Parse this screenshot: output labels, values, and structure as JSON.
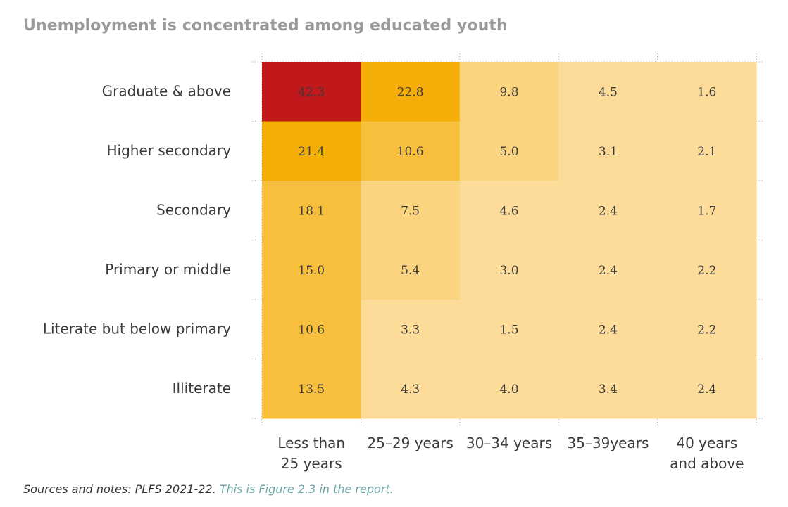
{
  "title": "Unemployment is concentrated among educated youth",
  "footer": {
    "sources": "Sources and notes: PLFS 2021-22.",
    "figure_ref": "This is Figure 2.3 in the report."
  },
  "colors": {
    "highest": "#c1191b",
    "high": "#f5ae07",
    "mid_high": "#f8bf3c",
    "mid": "#fad47e",
    "low": "#fddc9a"
  },
  "chart_data": {
    "type": "heatmap",
    "title": "Unemployment is concentrated among educated youth",
    "rows": [
      "Graduate & above",
      "Higher secondary",
      "Secondary",
      "Primary or middle",
      "Literate but below primary",
      "Illiterate"
    ],
    "columns": [
      [
        "Less than",
        "25 years"
      ],
      [
        "25–29 years"
      ],
      [
        "30–34 years"
      ],
      [
        "35–39years"
      ],
      [
        "40 years",
        "and above"
      ]
    ],
    "values": [
      [
        42.3,
        22.8,
        9.8,
        4.5,
        1.6
      ],
      [
        21.4,
        10.6,
        5.0,
        3.1,
        2.1
      ],
      [
        18.1,
        7.5,
        4.6,
        2.4,
        1.7
      ],
      [
        15.0,
        5.4,
        3.0,
        2.4,
        2.2
      ],
      [
        10.6,
        3.3,
        1.5,
        2.4,
        2.2
      ],
      [
        13.5,
        4.3,
        4.0,
        3.4,
        2.4
      ]
    ],
    "value_labels": [
      [
        "42.3",
        "22.8",
        "9.8",
        "4.5",
        "1.6"
      ],
      [
        "21.4",
        "10.6",
        "5.0",
        "3.1",
        "2.1"
      ],
      [
        "18.1",
        "7.5",
        "4.6",
        "2.4",
        "1.7"
      ],
      [
        "15.0",
        "5.4",
        "3.0",
        "2.4",
        "2.2"
      ],
      [
        "10.6",
        "3.3",
        "1.5",
        "2.4",
        "2.2"
      ],
      [
        "13.5",
        "4.3",
        "4.0",
        "3.4",
        "2.4"
      ]
    ],
    "grid": true
  }
}
